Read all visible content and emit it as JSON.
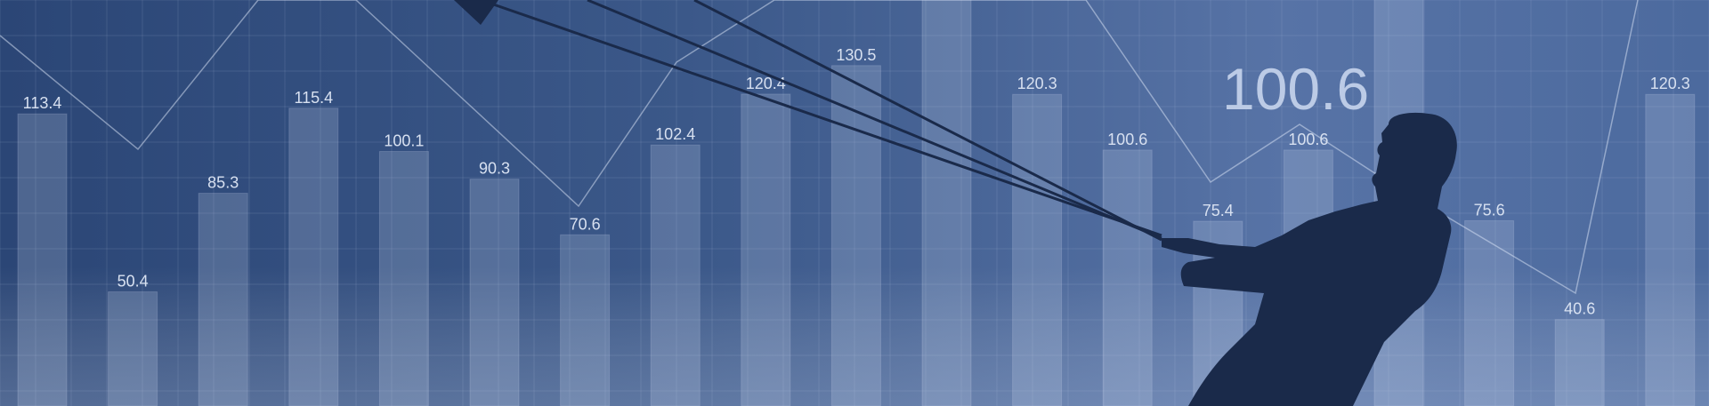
{
  "banner": {
    "highlight_value": "100.6",
    "colors": {
      "silhouette": "#1a2a4a",
      "accent_text": "#bccbe6"
    },
    "icons": [
      "figure-silhouette",
      "rope-lines",
      "trend-line"
    ]
  },
  "chart_data": {
    "type": "bar",
    "categories": [],
    "values": [
      113.4,
      50.4,
      85.3,
      115.4,
      100.1,
      90.3,
      70.6,
      102.4,
      120.4,
      130.5,
      null,
      120.3,
      100.6,
      75.4,
      100.6,
      null,
      75.6,
      40.6,
      120.3
    ],
    "labels": [
      "113.4",
      "50.4",
      "85.3",
      "115.4",
      "100.1",
      "90.3",
      "70.6",
      "102.4",
      "120.4",
      "130.5",
      "",
      "120.3",
      "100.6",
      "75.4",
      "100.6",
      "",
      "75.6",
      "40.6",
      "120.3"
    ],
    "ylim": [
      0,
      140
    ],
    "grid": true
  }
}
